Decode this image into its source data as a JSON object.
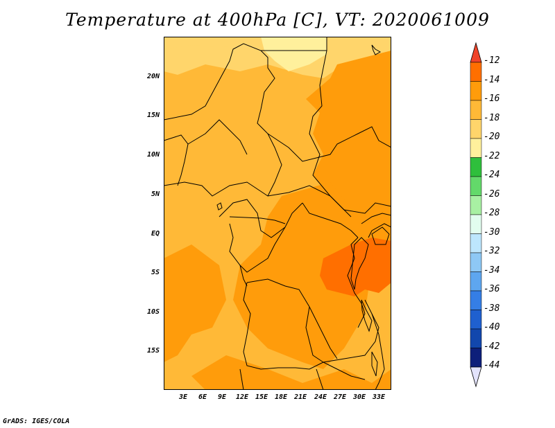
{
  "title": "Temperature at 400hPa [C], VT: 2020061009",
  "credit": "GrADS: IGES/COLA",
  "y_ticks": [
    "20N",
    "15N",
    "10N",
    "5N",
    "EQ",
    "5S",
    "10S",
    "15S"
  ],
  "x_ticks": [
    "3E",
    "6E",
    "9E",
    "12E",
    "15E",
    "18E",
    "21E",
    "24E",
    "27E",
    "30E",
    "33E"
  ],
  "legend": {
    "labels": [
      "-12",
      "-14",
      "-16",
      "-18",
      "-20",
      "-22",
      "-24",
      "-26",
      "-28",
      "-30",
      "-32",
      "-34",
      "-36",
      "-38",
      "-40",
      "-42",
      "-44"
    ],
    "colors": [
      "#f0442a",
      "#ff6f00",
      "#ff9c0b",
      "#ffb937",
      "#ffd56b",
      "#fff09c",
      "#2fbf3c",
      "#63d96a",
      "#a8f0a3",
      "#e2fdef",
      "#bde6fd",
      "#8ec8f5",
      "#5ea6ef",
      "#357ee5",
      "#1f60cf",
      "#1247ad",
      "#0d1f7a",
      "#e3e3fb"
    ]
  },
  "colors": {
    "t_minus_14_16": "#ff9c0b",
    "t_minus_16_18": "#ffb937",
    "t_minus_18_20": "#ffd56b",
    "t_minus_20_22": "#fff09c",
    "t_minus_12_14": "#ff6f00"
  }
}
